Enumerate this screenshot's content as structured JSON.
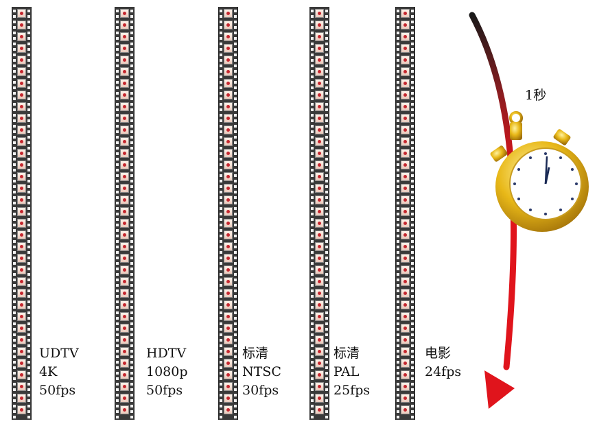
{
  "strips": [
    {
      "lines": [
        "UDTV",
        "4K",
        "50fps"
      ]
    },
    {
      "lines": [
        "HDTV",
        "1080p",
        "50fps"
      ]
    },
    {
      "lines": [
        "标清",
        "NTSC",
        "30fps"
      ]
    },
    {
      "lines": [
        "标清",
        "PAL",
        "25fps"
      ]
    },
    {
      "lines": [
        "电影",
        "24fps"
      ]
    }
  ],
  "time_label": "1秒",
  "colors": {
    "arrow": "#e0141c",
    "film": "#3a3a3a",
    "frame": "#f4ddd2",
    "watch_gold": "#e8b818"
  }
}
